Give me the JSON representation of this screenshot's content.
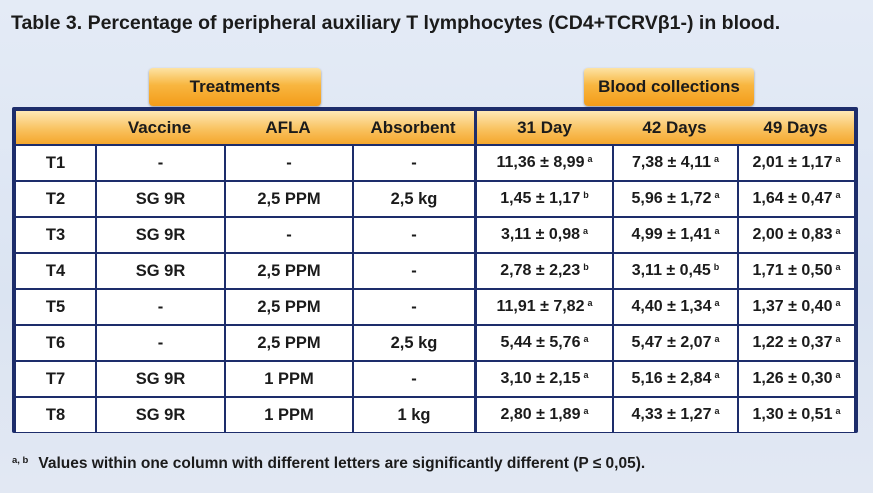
{
  "title": "Table 3. Percentage of peripheral auxiliary T lymphocytes (CD4+TCRVβ1-) in blood.",
  "group_headers": {
    "treatments": "Treatments",
    "blood": "Blood collections"
  },
  "columns": [
    "",
    "Vaccine",
    "AFLA",
    "Absorbent",
    "31 Day",
    "42 Days",
    "49 Days"
  ],
  "rows": [
    {
      "id": "T1",
      "vaccine": "-",
      "afla": "-",
      "absorbent": "-",
      "d31": "11,36 ± 8,99",
      "d31s": "a",
      "d42": "7,38 ± 4,11",
      "d42s": "a",
      "d49": "2,01 ± 1,17",
      "d49s": "a"
    },
    {
      "id": "T2",
      "vaccine": "SG 9R",
      "afla": "2,5 PPM",
      "absorbent": "2,5 kg",
      "d31": "1,45 ± 1,17",
      "d31s": "b",
      "d42": "5,96 ± 1,72",
      "d42s": "a",
      "d49": "1,64 ± 0,47",
      "d49s": "a"
    },
    {
      "id": "T3",
      "vaccine": "SG 9R",
      "afla": "-",
      "absorbent": "-",
      "d31": "3,11 ± 0,98",
      "d31s": "a",
      "d42": "4,99 ± 1,41",
      "d42s": "a",
      "d49": "2,00 ± 0,83",
      "d49s": "a"
    },
    {
      "id": "T4",
      "vaccine": "SG 9R",
      "afla": "2,5 PPM",
      "absorbent": "-",
      "d31": "2,78 ± 2,23",
      "d31s": "b",
      "d42": "3,11 ± 0,45",
      "d42s": "b",
      "d49": "1,71 ± 0,50",
      "d49s": "a"
    },
    {
      "id": "T5",
      "vaccine": "-",
      "afla": "2,5 PPM",
      "absorbent": "-",
      "d31": "11,91 ± 7,82",
      "d31s": "a",
      "d42": "4,40 ± 1,34",
      "d42s": "a",
      "d49": "1,37 ± 0,40",
      "d49s": "a"
    },
    {
      "id": "T6",
      "vaccine": "-",
      "afla": "2,5 PPM",
      "absorbent": "2,5 kg",
      "d31": "5,44 ± 5,76",
      "d31s": "a",
      "d42": "5,47 ± 2,07",
      "d42s": "a",
      "d49": "1,22 ± 0,37",
      "d49s": "a"
    },
    {
      "id": "T7",
      "vaccine": "SG 9R",
      "afla": "1 PPM",
      "absorbent": "-",
      "d31": "3,10 ± 2,15",
      "d31s": "a",
      "d42": "5,16 ± 2,84",
      "d42s": "a",
      "d49": "1,26 ± 0,30",
      "d49s": "a"
    },
    {
      "id": "T8",
      "vaccine": "SG 9R",
      "afla": "1 PPM",
      "absorbent": "1 kg",
      "d31": "2,80 ± 1,89",
      "d31s": "a",
      "d42": "4,33 ± 1,27",
      "d42s": "a",
      "d49": "1,30 ± 0,51",
      "d49s": "a"
    }
  ],
  "footnote": {
    "marks": "a, b",
    "text": "Values within one column with different letters are significantly different (P ≤ 0,05)."
  }
}
